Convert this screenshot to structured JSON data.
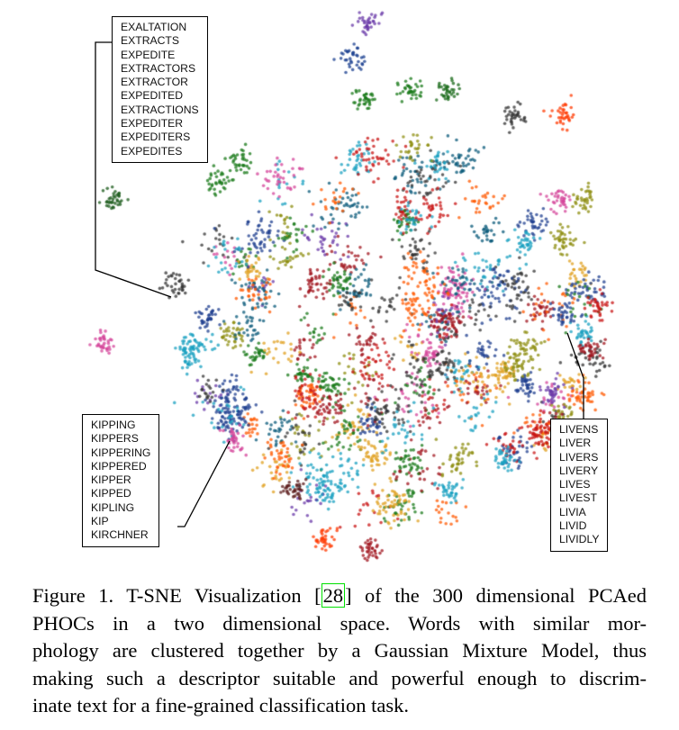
{
  "figure": {
    "box_top_words": [
      "EXALTATION",
      "EXTRACTS",
      "EXPEDITE",
      "EXTRACTORS",
      "EXTRACTOR",
      "EXPEDITED",
      "EXTRACTIONS",
      "EXPEDITER",
      "EXPEDITERS",
      "EXPEDITES"
    ],
    "box_left_words": [
      "KIPPING",
      "KIPPERS",
      "KIPPERING",
      "KIPPERED",
      "KIPPER",
      "KIPPED",
      "KIPLING",
      "KIP",
      "KIRCHNER"
    ],
    "box_right_words": [
      "LIVENS",
      "LIVER",
      "LIVERS",
      "LIVERY",
      "LIVES",
      "LIVEST",
      "LIVIA",
      "LIVID",
      "LIVIDLY"
    ],
    "cluster_colors": [
      "#1f3f8f",
      "#a0141e",
      "#1a7a1a",
      "#d4449a",
      "#333333",
      "#ff5a00",
      "#8e8e10",
      "#1aa0c0",
      "#6a3aa8",
      "#c81414",
      "#0a5a7a",
      "#e0a020"
    ]
  },
  "caption": {
    "line1_a": "Figure 1. T-SNE Visualization [",
    "cite": "28",
    "line1_b": "] of the 300 dimensional PCAed",
    "line2": "PHOCs in a two dimensional space.  Words with similar mor-",
    "line3": "phology are clustered together by a Gaussian Mixture Model, thus",
    "line4": "making such a descriptor suitable and powerful enough to discrim-",
    "line5": "inate text for a fine-grained classification task."
  }
}
